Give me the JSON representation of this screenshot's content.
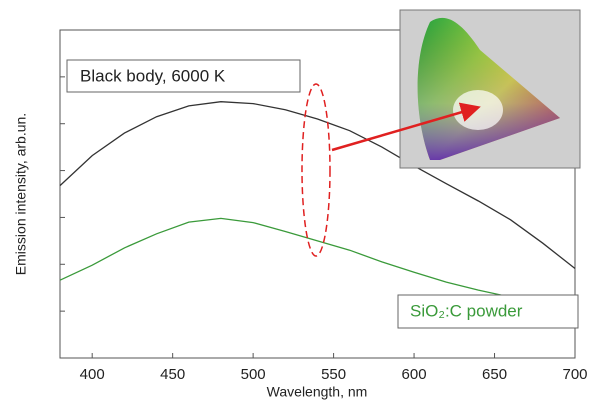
{
  "chart_data": {
    "type": "line",
    "xlabel": "Wavelength, nm",
    "ylabel": "Emission intensity, arb.un.",
    "x": [
      380,
      400,
      420,
      440,
      460,
      480,
      500,
      520,
      540,
      560,
      580,
      600,
      620,
      640,
      660,
      680,
      700
    ],
    "series": [
      {
        "name": "Black body, 6000 K",
        "color": "#333333",
        "values": [
          3.68,
          4.32,
          4.8,
          5.15,
          5.38,
          5.47,
          5.43,
          5.3,
          5.1,
          4.85,
          4.5,
          4.1,
          3.72,
          3.35,
          2.95,
          2.45,
          1.91
        ]
      },
      {
        "name": "SiO₂:C powder",
        "color": "#3a9a3a",
        "values": [
          1.66,
          1.98,
          2.35,
          2.65,
          2.9,
          2.98,
          2.89,
          2.7,
          2.5,
          2.3,
          2.05,
          1.83,
          1.62,
          1.45,
          1.3,
          1.19,
          1.23
        ]
      }
    ],
    "xlim": [
      380,
      700
    ],
    "xticks": [
      400,
      450,
      500,
      550,
      600,
      650,
      700
    ],
    "ylim": [
      0,
      7
    ],
    "yticks": [
      1,
      2,
      3,
      4,
      5,
      6
    ]
  }
}
